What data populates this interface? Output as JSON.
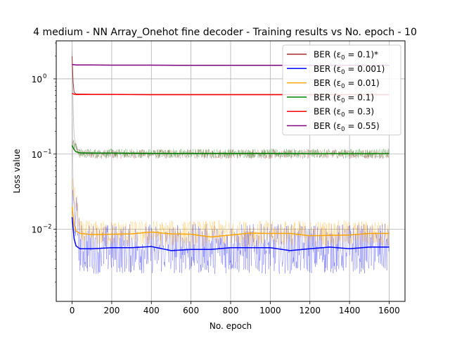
{
  "chart_data": {
    "type": "line",
    "title": "4 medium - NN Array_Onehot fine decoder - Training results vs No. epoch - 10",
    "xlabel": "No. epoch",
    "ylabel": "Loss value",
    "xlim": [
      -80,
      1680
    ],
    "ylim": [
      0.0011,
      3.2
    ],
    "yscale": "log",
    "grid": true,
    "legend_position": "top-right",
    "xticks": [
      0,
      200,
      400,
      600,
      800,
      1000,
      1200,
      1400,
      1600
    ],
    "xtick_labels": [
      "0",
      "200",
      "400",
      "600",
      "800",
      "1000",
      "1200",
      "1400",
      "1600"
    ],
    "yticks": [
      0.01,
      0.1,
      1
    ],
    "ytick_labels": [
      "10",
      "10",
      "10"
    ],
    "ytick_exponents": [
      "−2",
      "−1",
      "0"
    ],
    "legend": [
      {
        "label": "BER (ε",
        "sub": "0",
        "value": " = 0.1)*",
        "color": "#a52a2a"
      },
      {
        "label": "BER (ε",
        "sub": "0",
        "value": " = 0.001)",
        "color": "#0000ff"
      },
      {
        "label": "BER (ε",
        "sub": "0",
        "value": " = 0.01)",
        "color": "#ffa500"
      },
      {
        "label": "BER (ε",
        "sub": "0",
        "value": " = 0.1)",
        "color": "#008000"
      },
      {
        "label": "BER (ε",
        "sub": "0",
        "value": " = 0.3)",
        "color": "#ff0000"
      },
      {
        "label": "BER (ε",
        "sub": "0",
        "value": " = 0.55)",
        "color": "#800080"
      }
    ],
    "series": [
      {
        "name": "BER (ε0 = 0.1)*",
        "color": "#a52a2a",
        "x": [
          0,
          5,
          10,
          20,
          40,
          100,
          200,
          400,
          600,
          800,
          1000,
          1200,
          1400,
          1600
        ],
        "values": [
          2.0,
          0.9,
          0.66,
          0.63,
          0.63,
          0.625,
          0.625,
          0.62,
          0.62,
          0.62,
          0.62,
          0.62,
          0.62,
          0.62
        ]
      },
      {
        "name": "BER (ε0 = 0.001)",
        "color": "#0000ff",
        "x": [
          0,
          10,
          20,
          40,
          100,
          200,
          300,
          400,
          500,
          600,
          700,
          800,
          900,
          1000,
          1100,
          1200,
          1300,
          1400,
          1500,
          1600
        ],
        "values": [
          0.0145,
          0.0075,
          0.006,
          0.0055,
          0.0055,
          0.0057,
          0.0057,
          0.0059,
          0.0052,
          0.0054,
          0.0054,
          0.0057,
          0.0057,
          0.0057,
          0.0052,
          0.0055,
          0.0058,
          0.0055,
          0.0058,
          0.0058
        ]
      },
      {
        "name": "BER (ε0 = 0.01)",
        "color": "#ffa500",
        "x": [
          0,
          10,
          20,
          40,
          100,
          200,
          300,
          400,
          500,
          600,
          700,
          800,
          900,
          1000,
          1100,
          1200,
          1300,
          1400,
          1500,
          1600
        ],
        "values": [
          0.02,
          0.0115,
          0.0095,
          0.0088,
          0.0085,
          0.0086,
          0.0087,
          0.0092,
          0.0087,
          0.0086,
          0.0079,
          0.0084,
          0.0089,
          0.0088,
          0.0088,
          0.0082,
          0.0083,
          0.0084,
          0.0088,
          0.0088
        ]
      },
      {
        "name": "BER (ε0 = 0.1)",
        "color": "#008000",
        "x": [
          0,
          10,
          20,
          40,
          100,
          200,
          400,
          600,
          800,
          1000,
          1200,
          1400,
          1600
        ],
        "values": [
          0.13,
          0.115,
          0.107,
          0.104,
          0.103,
          0.103,
          0.102,
          0.102,
          0.102,
          0.102,
          0.101,
          0.101,
          0.101
        ]
      },
      {
        "name": "BER (ε0 = 0.3)",
        "color": "#ff0000",
        "x": [
          0,
          10,
          20,
          40,
          100,
          200,
          400,
          600,
          800,
          1000,
          1200,
          1400,
          1600
        ],
        "values": [
          0.64,
          0.625,
          0.62,
          0.62,
          0.62,
          0.62,
          0.615,
          0.615,
          0.615,
          0.615,
          0.615,
          0.615,
          0.615
        ]
      },
      {
        "name": "BER (ε0 = 0.55)",
        "color": "#800080",
        "x": [
          0,
          10,
          20,
          40,
          100,
          200,
          400,
          600,
          800,
          1000,
          1200,
          1400,
          1600
        ],
        "values": [
          1.55,
          1.54,
          1.53,
          1.53,
          1.53,
          1.52,
          1.52,
          1.51,
          1.51,
          1.51,
          1.51,
          1.51,
          1.51
        ]
      }
    ],
    "noisy_traces": [
      {
        "color": "#a52a2a",
        "center": 0.1,
        "spread": 0.08
      },
      {
        "color": "#008000",
        "center": 0.102,
        "spread": 0.08
      },
      {
        "color": "#0000ff",
        "center": 0.0055,
        "spread": 0.35
      },
      {
        "color": "#ffa500",
        "center": 0.0088,
        "spread": 0.22
      }
    ]
  }
}
